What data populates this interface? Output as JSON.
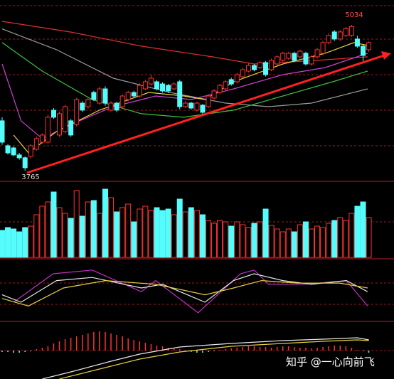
{
  "chart_data": [
    {
      "type": "candlestick",
      "high_label": "5034",
      "low_label": "3765",
      "up_color": "#ff3232",
      "down_color": "#54fcfc",
      "xlim": [
        -0.37,
        68.4
      ],
      "ylim": [
        3672,
        5251
      ],
      "open": [
        4199,
        3982,
        3963,
        3902,
        3877,
        3889,
        3951,
        4013,
        4013,
        4291,
        4075,
        4106,
        4199,
        4168,
        4353,
        4322,
        4446,
        4353,
        4477,
        4292,
        4353,
        4322,
        4384,
        4446,
        4415,
        4477,
        4520,
        4539,
        4520,
        4508,
        4477,
        4539,
        4322,
        4353,
        4292,
        4335,
        4322,
        4397,
        4446,
        4477,
        4558,
        4539,
        4582,
        4632,
        4681,
        4663,
        4706,
        4644,
        4694,
        4725,
        4743,
        4787,
        4756,
        4787,
        4694,
        4756,
        4787,
        4880,
        4973,
        4911,
        4942,
        4942,
        4911,
        4849,
        4818
      ],
      "high": [
        4230,
        3995,
        3975,
        3920,
        3890,
        3995,
        4060,
        4090,
        4250,
        4310,
        4280,
        4340,
        4215,
        4400,
        4370,
        4400,
        4460,
        4495,
        4500,
        4370,
        4365,
        4430,
        4460,
        4460,
        4525,
        4555,
        4600,
        4555,
        4535,
        4520,
        4535,
        4555,
        4370,
        4365,
        4365,
        4345,
        4430,
        4475,
        4520,
        4555,
        4575,
        4615,
        4660,
        4700,
        4695,
        4720,
        4720,
        4740,
        4770,
        4800,
        4800,
        4800,
        4820,
        4800,
        4770,
        4835,
        4895,
        4960,
        4990,
        4990,
        5015,
        5034,
        4940,
        4860,
        4890
      ],
      "low": [
        3990,
        3905,
        3890,
        3860,
        3765,
        3870,
        3940,
        4000,
        4000,
        4215,
        4060,
        4090,
        4060,
        4150,
        4275,
        4305,
        4370,
        4340,
        4330,
        4280,
        4275,
        4305,
        4370,
        4400,
        4400,
        4465,
        4505,
        4465,
        4445,
        4440,
        4465,
        4300,
        4310,
        4295,
        4280,
        4255,
        4310,
        4385,
        4430,
        4465,
        4505,
        4525,
        4570,
        4620,
        4630,
        4650,
        4585,
        4630,
        4680,
        4710,
        4730,
        4710,
        4740,
        4680,
        4680,
        4740,
        4770,
        4865,
        4895,
        4895,
        4930,
        4930,
        4835,
        4720,
        4800
      ],
      "close": [
        4013,
        3920,
        3902,
        3877,
        3790,
        3982,
        4044,
        4075,
        4230,
        4230,
        4261,
        4322,
        4075,
        4384,
        4292,
        4384,
        4384,
        4477,
        4353,
        4353,
        4292,
        4415,
        4446,
        4415,
        4508,
        4539,
        4570,
        4477,
        4459,
        4459,
        4520,
        4322,
        4353,
        4310,
        4353,
        4273,
        4415,
        4459,
        4508,
        4539,
        4520,
        4601,
        4644,
        4681,
        4644,
        4706,
        4601,
        4725,
        4756,
        4787,
        4787,
        4725,
        4805,
        4694,
        4756,
        4818,
        4880,
        4942,
        4911,
        4973,
        5003,
        5020,
        4849,
        4768,
        4880
      ],
      "series": [
        {
          "color": "#e03030",
          "x": [
            0,
            12,
            24.3,
            36.7,
            44,
            55,
            63.8
          ],
          "values": [
            5065,
            4972,
            4849,
            4756,
            4694,
            4725,
            4756
          ]
        },
        {
          "color": "#9a9a9a",
          "x": [
            0,
            9.5,
            19.4,
            29.3,
            39,
            46.5,
            54,
            63.8
          ],
          "values": [
            4999,
            4818,
            4570,
            4446,
            4353,
            4322,
            4353,
            4477
          ]
        },
        {
          "color": "#40c040",
          "x": [
            0,
            7,
            15.7,
            24.3,
            31.7,
            40.4,
            49,
            57.7,
            63.8
          ],
          "values": [
            4880,
            4632,
            4384,
            4261,
            4230,
            4292,
            4415,
            4539,
            4632
          ]
        },
        {
          "color": "#d040d0",
          "x": [
            0,
            3.3,
            7,
            12,
            19.4,
            26.8,
            33,
            40.4,
            49,
            56.4,
            63.8
          ],
          "values": [
            4694,
            4199,
            4044,
            4168,
            4322,
            4415,
            4384,
            4477,
            4601,
            4663,
            4787
          ]
        },
        {
          "color": "#e8d040",
          "x": [
            2,
            4.6,
            9.5,
            17,
            25.6,
            31.7,
            35.4,
            40.4,
            49,
            56.4,
            61.4,
            64.4
          ],
          "values": [
            4075,
            3920,
            4106,
            4292,
            4446,
            4415,
            4384,
            4539,
            4694,
            4787,
            4880,
            4849
          ]
        }
      ]
    },
    {
      "type": "volume",
      "up_color": "#ff3232",
      "down_color": "#54fcfc",
      "xlim": [
        -0.37,
        68.4
      ],
      "ylim": [
        0,
        100
      ],
      "values": [
        38,
        42,
        40,
        36,
        42,
        44,
        60,
        72,
        78,
        92,
        70,
        62,
        55,
        94,
        58,
        78,
        80,
        62,
        96,
        84,
        64,
        70,
        75,
        50,
        68,
        72,
        66,
        70,
        66,
        68,
        60,
        82,
        64,
        70,
        66,
        60,
        52,
        48,
        52,
        50,
        44,
        50,
        46,
        42,
        48,
        50,
        68,
        45,
        40,
        36,
        40,
        36,
        46,
        50,
        40,
        44,
        42,
        48,
        52,
        56,
        52,
        62,
        72,
        78,
        56
      ]
    },
    {
      "type": "line",
      "xlim": [
        -0.37,
        68.4
      ],
      "ylim": [
        0,
        100
      ],
      "series": [
        {
          "color": "#c030c0",
          "x": [
            2,
            8.9,
            15.7,
            24.3,
            26.8,
            34.2,
            41.6,
            44,
            46.5,
            52.7,
            60.1,
            63.8
          ],
          "values": [
            31,
            77,
            83,
            48,
            66,
            14,
            77,
            83,
            60,
            60,
            66,
            25
          ]
        },
        {
          "color": "#e8e8e8",
          "x": [
            0,
            3.3,
            9.5,
            15.7,
            24.3,
            28,
            35.4,
            40.4,
            44,
            49,
            54,
            60.1,
            63.8
          ],
          "values": [
            43,
            31,
            66,
            71,
            54,
            60,
            31,
            66,
            77,
            66,
            60,
            66,
            48
          ]
        },
        {
          "color": "#e8d040",
          "x": [
            0,
            4.6,
            10.7,
            18.1,
            26.8,
            35.4,
            40.4,
            45.3,
            51.5,
            58.9,
            63.8
          ],
          "values": [
            37,
            25,
            54,
            66,
            60,
            43,
            54,
            66,
            62,
            62,
            54
          ]
        }
      ]
    },
    {
      "type": "macd",
      "up_color": "#ff3232",
      "down_color": "#54fcfc",
      "xlim": [
        -0.37,
        68.4
      ],
      "ylim": [
        -40,
        41
      ],
      "values": [
        -2,
        -2,
        -3,
        -3,
        -2,
        -1,
        2,
        4,
        6,
        10,
        13,
        16,
        18,
        20,
        22,
        24,
        26,
        27,
        26,
        24,
        22,
        20,
        17,
        15,
        13,
        11,
        9,
        7,
        6,
        4,
        3,
        2,
        -1,
        -2,
        -3,
        -3,
        -2,
        -1,
        1,
        2,
        3,
        4,
        5,
        6,
        6,
        5,
        5,
        4,
        5,
        6,
        6,
        5,
        4,
        4,
        3,
        4,
        5,
        6,
        7,
        7,
        6,
        4,
        1,
        -1,
        -3
      ],
      "series": [
        {
          "color": "#e8e8e8",
          "x": [
            7,
            12,
            19,
            24,
            31,
            40,
            49,
            56,
            62,
            64
          ],
          "values": [
            -40,
            -30,
            -15,
            -5,
            5,
            10,
            14,
            16,
            18,
            15
          ]
        },
        {
          "color": "#e8d040",
          "x": [
            10,
            16,
            24,
            31,
            40,
            49,
            56,
            62,
            64
          ],
          "values": [
            -40,
            -28,
            -12,
            -2,
            6,
            10,
            13,
            15,
            14
          ]
        }
      ]
    }
  ],
  "watermark": "知乎 @一心向前飞"
}
